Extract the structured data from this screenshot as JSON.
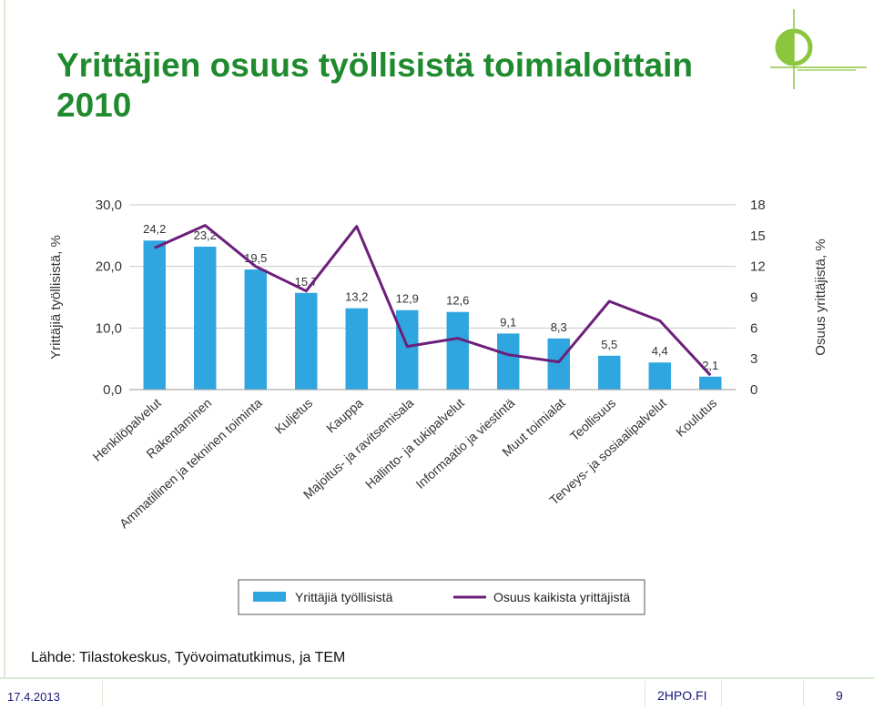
{
  "slide": {
    "title": "Yrittäjien osuus työllisistä toimialoittain 2010",
    "source": "Lähde: Tilastokeskus, Työvoimatutkimus, ja TEM",
    "footer_date": "17.4.2013",
    "footer_site": "2HPO.FI",
    "page_number": "9",
    "accent_color": "#1f8a2e"
  },
  "chart_data": {
    "type": "bar",
    "categories": [
      "Henkilöpalvelut",
      "Rakentaminen",
      "Ammatillinen ja tekninen toiminta",
      "Kuljetus",
      "Kauppa",
      "Majoitus- ja ravitsemisala",
      "Hallinto- ja tukipalvelut",
      "Informaatio ja viestintä",
      "Muut toimialat",
      "Teollisuus",
      "Terveys- ja sosiaalipalvelut",
      "Koulutus"
    ],
    "series": [
      {
        "name": "Yrittäjiä työllisistä",
        "type": "bar",
        "axis": "left",
        "color": "#2fa6e0",
        "values": [
          24.2,
          23.2,
          19.5,
          15.7,
          13.2,
          12.9,
          12.6,
          9.1,
          8.3,
          5.5,
          4.4,
          2.1
        ],
        "value_labels": [
          "24,2",
          "23,2",
          "19,5",
          "15,7",
          "13,2",
          "12,9",
          "12,6",
          "9,1",
          "8,3",
          "5,5",
          "4,4",
          "2,1"
        ]
      },
      {
        "name": "Osuus kaikista yrittäjistä",
        "type": "line",
        "axis": "right",
        "color": "#6b1f7a",
        "values": [
          13.8,
          16.0,
          12.0,
          9.6,
          15.9,
          4.2,
          5.0,
          3.4,
          2.7,
          8.6,
          6.7,
          1.4
        ]
      }
    ],
    "ylabel": "Yrittäjiä työllisistä, %",
    "ylim": [
      0,
      30
    ],
    "yticks": [
      "0,0",
      "10,0",
      "20,0",
      "30,0"
    ],
    "y2label": "Osuus yrittäjistä, %",
    "y2lim": [
      0,
      18
    ],
    "y2ticks": [
      "0",
      "3",
      "6",
      "9",
      "12",
      "15",
      "18"
    ],
    "grid": true,
    "legend": "bottom"
  }
}
